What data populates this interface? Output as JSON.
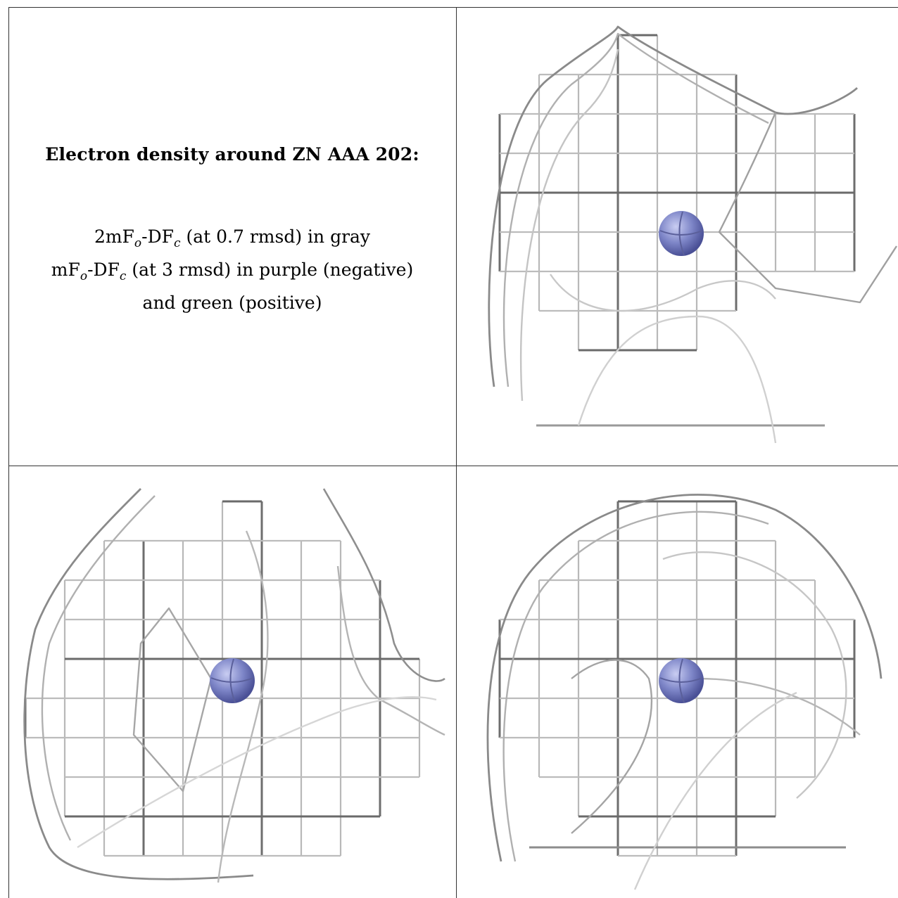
{
  "caption": {
    "title": "Electron density around ZN AAA 202:",
    "line1_a": "2mF",
    "line1_sub_o": "o",
    "line1_b": "-DF",
    "line1_sub_c": "c",
    "line1_rest": " (at 0.7 rmsd) in gray",
    "line2_a": "mF",
    "line2_sub_o": "o",
    "line2_b": "-DF",
    "line2_sub_c": "c",
    "line2_rest": " (at 3 rmsd) in purple (negative)",
    "line3": "and green (positive)"
  },
  "panels": [
    {
      "name": "view-top-right",
      "atom": "ZN",
      "atom_color": "#7e86c8",
      "mesh_color": "#9a9a9a"
    },
    {
      "name": "view-bottom-left",
      "atom": "ZN",
      "atom_color": "#7e86c8",
      "mesh_color": "#9a9a9a"
    },
    {
      "name": "view-bottom-right",
      "atom": "ZN",
      "atom_color": "#7e86c8",
      "mesh_color": "#9a9a9a"
    }
  ]
}
